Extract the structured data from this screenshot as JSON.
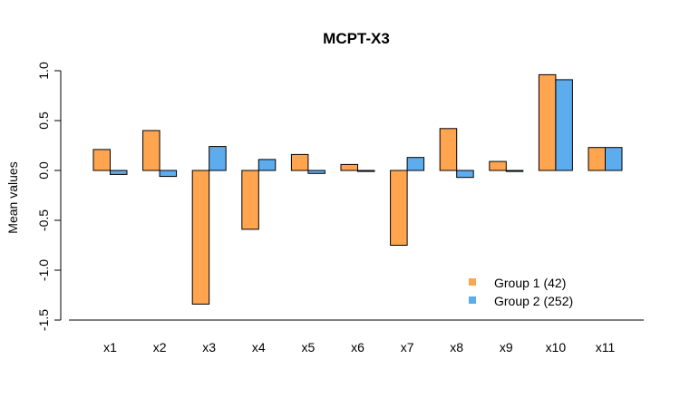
{
  "chart_data": {
    "type": "bar",
    "title": "MCPT-X3",
    "xlabel": "",
    "ylabel": "Mean values",
    "ylim": [
      -1.5,
      1.0
    ],
    "yticks": [
      -1.5,
      -1.0,
      -0.5,
      0.0,
      0.5,
      1.0
    ],
    "ytick_labels": [
      "-1.5",
      "-1.0",
      "-0.5",
      "0.0",
      "0.5",
      "1.0"
    ],
    "categories": [
      "x1",
      "x2",
      "x3",
      "x4",
      "x5",
      "x6",
      "x7",
      "x8",
      "x9",
      "x10",
      "x11"
    ],
    "series": [
      {
        "name": "Group 1 (42)",
        "color": "#FFA54F",
        "values": [
          0.21,
          0.4,
          -1.34,
          -0.59,
          0.16,
          0.06,
          -0.75,
          0.42,
          0.09,
          0.96,
          0.23
        ]
      },
      {
        "name": "Group 2 (252)",
        "color": "#5CACEE",
        "values": [
          -0.04,
          -0.06,
          0.24,
          0.11,
          -0.03,
          -0.01,
          0.13,
          -0.07,
          -0.01,
          0.91,
          0.23
        ]
      }
    ],
    "legend_position": "bottom-right",
    "grid": false
  }
}
